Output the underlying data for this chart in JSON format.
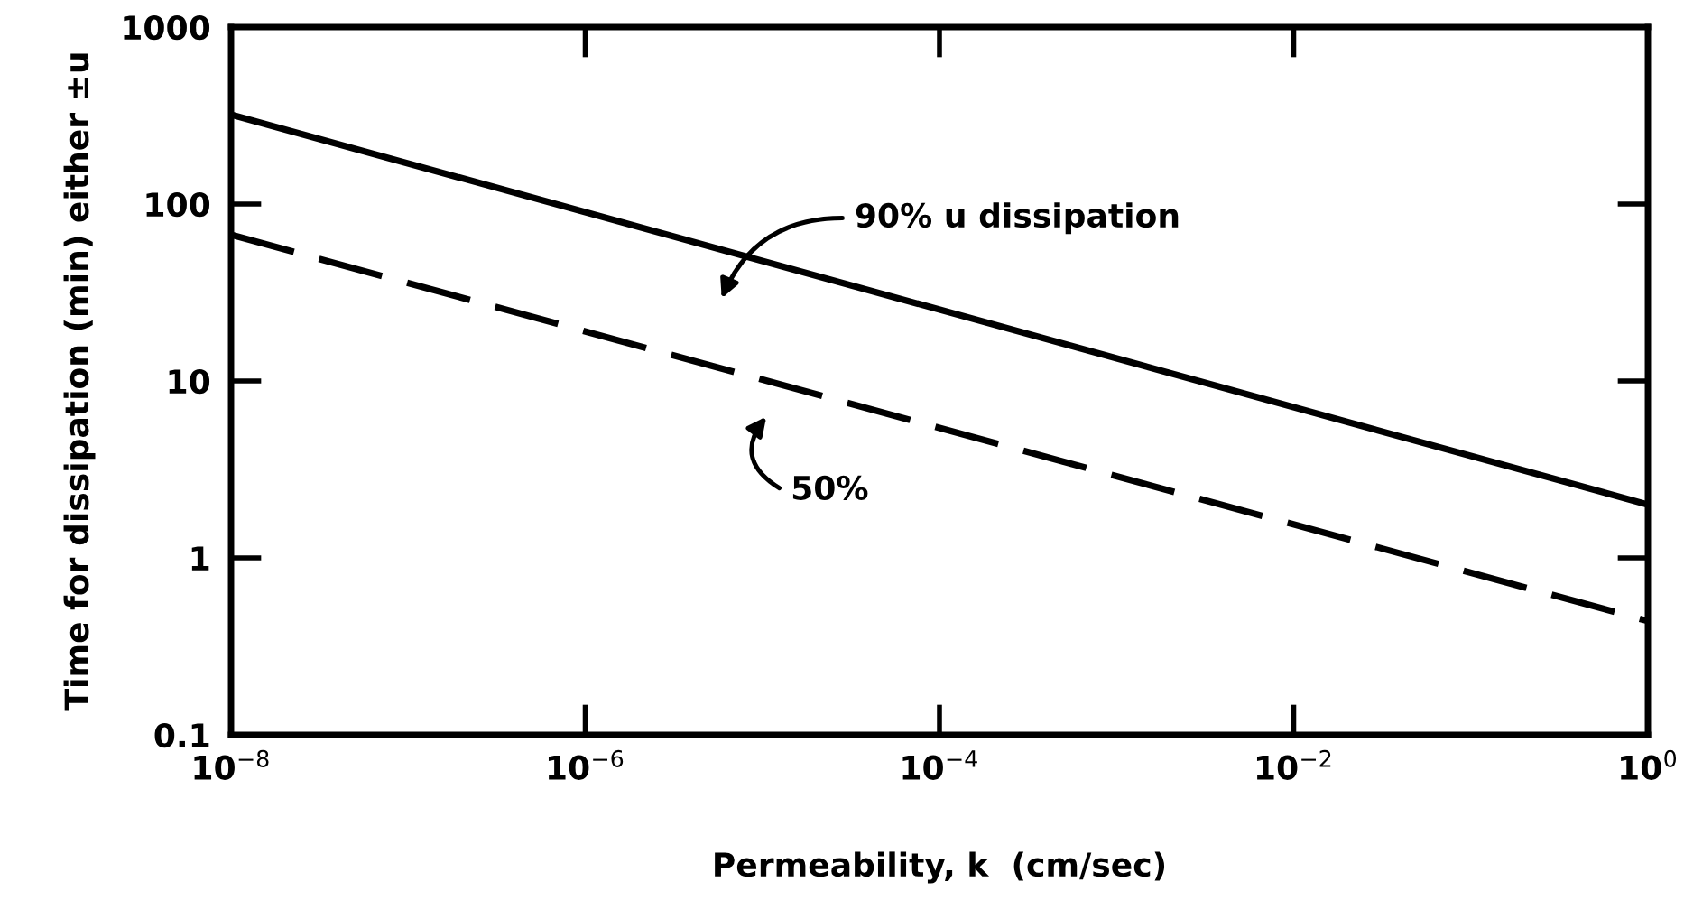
{
  "chart_data": {
    "type": "line",
    "xlabel": "Permeability, k  (cm/sec)",
    "ylabel": "Time for dissipation (min) either ±u",
    "log": "xy",
    "grid": false,
    "legend": false,
    "marker": "none",
    "x": [
      1e-08,
      1
    ],
    "series": [
      {
        "color": "#000000",
        "values": [
          320,
          2.0
        ],
        "line_style": "solid"
      },
      {
        "color": "#000000",
        "values": [
          67,
          0.44
        ],
        "line_style": "dashed"
      }
    ],
    "xlim": [
      1e-08,
      1
    ],
    "ylim": [
      0.1,
      1000
    ],
    "xticks": [
      {
        "value": 1e-08,
        "label": "10$^{−8}$"
      },
      {
        "value": 1e-06,
        "label": "10$^{−6}$"
      },
      {
        "value": 0.0001,
        "label": "10$^{−4}$"
      },
      {
        "value": 0.01,
        "label": "10$^{−2}$"
      },
      {
        "value": 1,
        "label": "10$^{0}$"
      }
    ],
    "yticks": [
      0.1,
      1,
      10,
      100,
      1000
    ],
    "annotations": [
      "90% u dissipation",
      "50%"
    ]
  }
}
